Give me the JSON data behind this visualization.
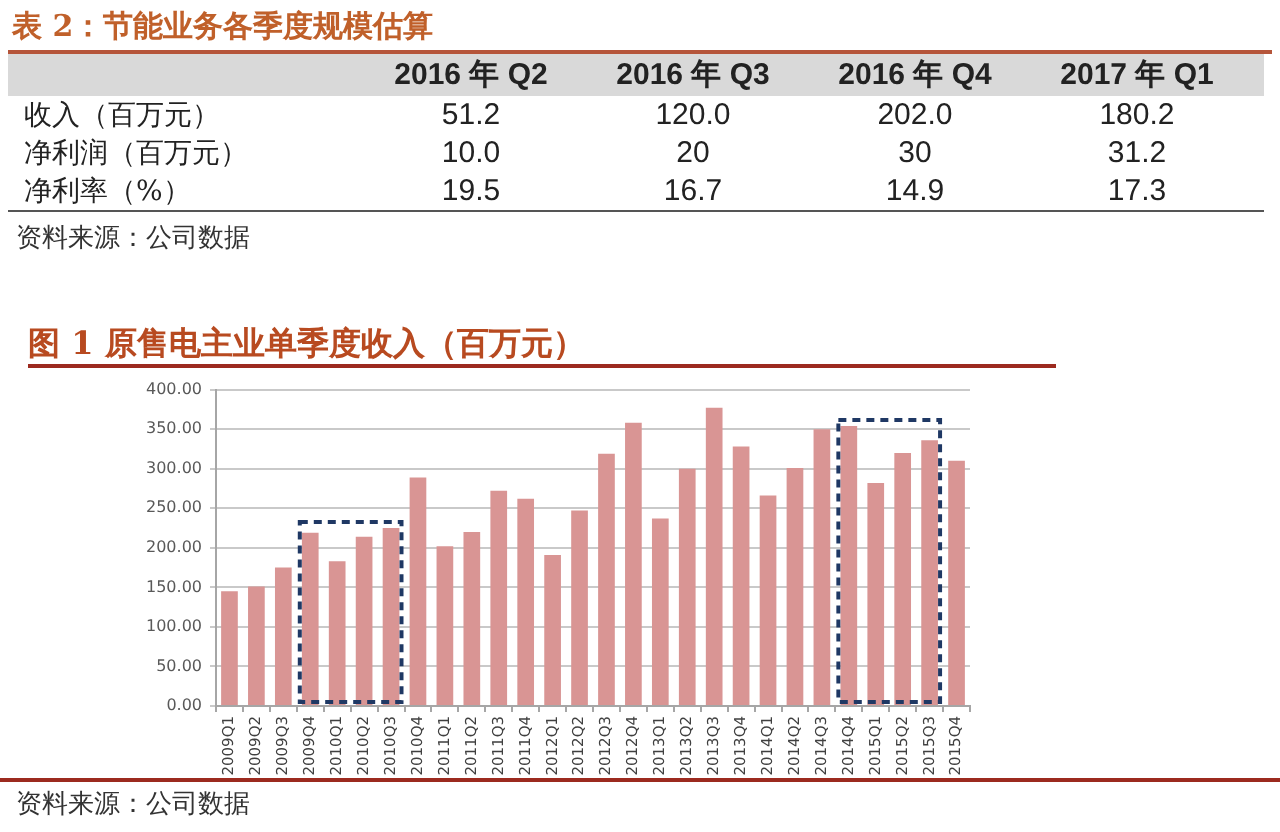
{
  "chart_data": [
    {
      "type": "other",
      "title": "表 2：节能业务各季度规模估算",
      "categories": [
        "2016 年 Q2",
        "2016 年 Q3",
        "2016 年 Q4",
        "2017 年 Q1"
      ],
      "series": [
        {
          "name": "收入（百万元）",
          "values": [
            51.2,
            120.0,
            202.0,
            180.2
          ],
          "value_labels": [
            "51.2",
            "120.0",
            "202.0",
            "180.2"
          ]
        },
        {
          "name": "净利润（百万元）",
          "values": [
            10.0,
            20,
            30,
            31.2
          ],
          "value_labels": [
            "10.0",
            "20",
            "30",
            "31.2"
          ]
        },
        {
          "name": "净利率（%）",
          "values": [
            19.5,
            16.7,
            14.9,
            17.3
          ],
          "value_labels": [
            "19.5",
            "16.7",
            "14.9",
            "17.3"
          ]
        }
      ],
      "annotations": [
        "资料来源：公司数据"
      ]
    },
    {
      "type": "bar",
      "title": "图 1 原售电主业单季度收入（百万元）",
      "categories": [
        "2009Q1",
        "2009Q2",
        "2009Q3",
        "2009Q4",
        "2010Q1",
        "2010Q2",
        "2010Q3",
        "2010Q4",
        "2011Q1",
        "2011Q2",
        "2011Q3",
        "2011Q4",
        "2012Q1",
        "2012Q2",
        "2012Q3",
        "2012Q4",
        "2013Q1",
        "2013Q2",
        "2013Q3",
        "2013Q4",
        "2014Q1",
        "2014Q2",
        "2014Q3",
        "2014Q4",
        "2015Q1",
        "2015Q2",
        "2015Q3",
        "2015Q4"
      ],
      "values": [
        145,
        151,
        175,
        219,
        183,
        214,
        225,
        289,
        202,
        220,
        272,
        262,
        191,
        247,
        319,
        358,
        237,
        300,
        377,
        328,
        266,
        301,
        350,
        354,
        282,
        320,
        336,
        310
      ],
      "color": "#d99594",
      "ylim": [
        0,
        400
      ],
      "yticks": [
        {
          "value": 0,
          "label": "0.00"
        },
        {
          "value": 50,
          "label": "50.00"
        },
        {
          "value": 100,
          "label": "100.00"
        },
        {
          "value": 150,
          "label": "150.00"
        },
        {
          "value": 200,
          "label": "200.00"
        },
        {
          "value": 250,
          "label": "250.00"
        },
        {
          "value": 300,
          "label": "300.00"
        },
        {
          "value": 350,
          "label": "350.00"
        },
        {
          "value": 400,
          "label": "400.00"
        }
      ],
      "grid": "y",
      "annotations": [
        "资料来源：公司数据"
      ]
    }
  ]
}
